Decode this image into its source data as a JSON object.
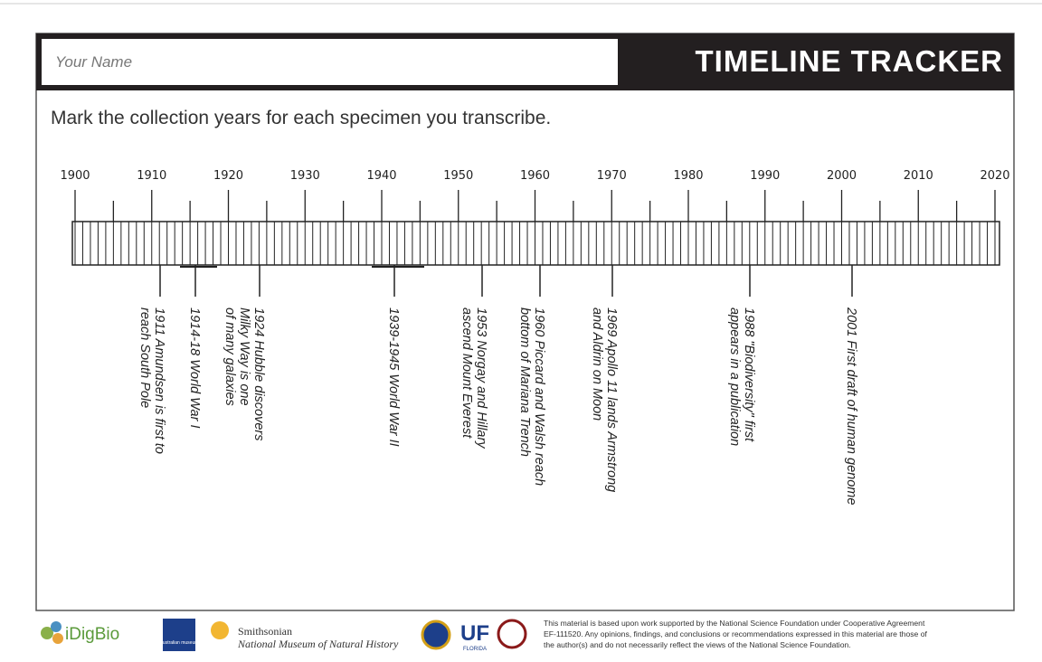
{
  "header": {
    "name_placeholder": "Your Name",
    "title": "TIMELINE TRACKER"
  },
  "instruction": "Mark the collection years for each specimen you transcribe.",
  "timeline": {
    "years": [
      1900,
      1910,
      1920,
      1930,
      1940,
      1950,
      1960,
      1970,
      1980,
      1990,
      2000,
      2010,
      2020
    ]
  },
  "events": [
    {
      "lines": [
        "1911 Amundsen is first to",
        "reach South Pole"
      ]
    },
    {
      "lines": [
        "1914-18 World War I"
      ]
    },
    {
      "lines": [
        "1924 Hubble discovers",
        "Milky Way is one",
        "of many galaxies"
      ]
    },
    {
      "lines": [
        "1939-1945 World War II"
      ]
    },
    {
      "lines": [
        "1953 Norgay and Hillary",
        "ascend Mount Everest"
      ]
    },
    {
      "lines": [
        "1960 Piccard and Walsh reach",
        "bottom of Mariana Trench"
      ]
    },
    {
      "lines": [
        "1969 Apollo 11 lands Armstrong",
        "and Aldrin on Moon"
      ]
    },
    {
      "lines": [
        "1988 \"Biodiversity\" first",
        "appears in a publication"
      ]
    },
    {
      "lines": [
        "2001 First draft of human genome"
      ]
    }
  ],
  "footer": {
    "logos": [
      "iDigBio",
      "Australian museum",
      "Smithsonian",
      "National Museum of Natural History",
      "UF",
      "FLORIDA"
    ],
    "disclaimer": [
      "This material is based upon work supported by the National Science Foundation under Cooperative Agreement",
      "EF-111520. Any opinions, findings, and conclusions or recommendations expressed in this material are those of",
      "the author(s) and do not necessarily reflect the views of the National Science Foundation."
    ]
  }
}
